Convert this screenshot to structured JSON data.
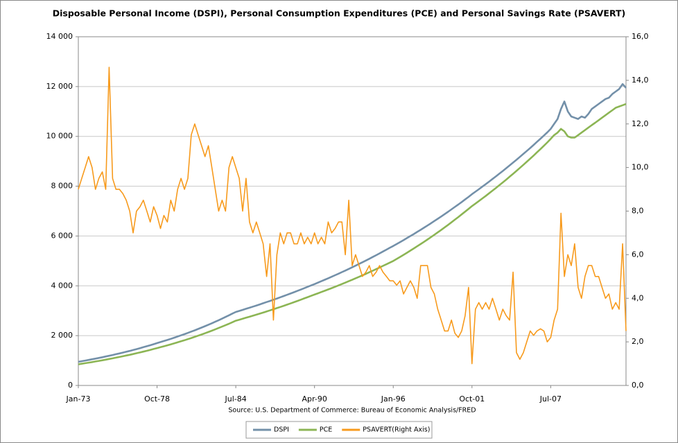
{
  "chart_data": {
    "type": "line",
    "title": "Disposable Personal Income (DSPI), Personal Consumption Expenditures (PCE) and Personal Savings Rate (PSAVERT)",
    "source": "Source: U.S. Department of Commerce: Bureau of Economic Analysis/FRED",
    "categories": [
      "Jan-73",
      null,
      null,
      null,
      null,
      null,
      null,
      null,
      null,
      null,
      null,
      null,
      null,
      null,
      null,
      null,
      null,
      null,
      null,
      null,
      null,
      null,
      null,
      "Oct-78",
      null,
      null,
      null,
      null,
      null,
      null,
      null,
      null,
      null,
      null,
      null,
      null,
      null,
      null,
      null,
      null,
      null,
      null,
      null,
      null,
      null,
      null,
      "Jul-84",
      null,
      null,
      null,
      null,
      null,
      null,
      null,
      null,
      null,
      null,
      null,
      null,
      null,
      null,
      null,
      null,
      null,
      null,
      null,
      null,
      null,
      null,
      "Apr-90",
      null,
      null,
      null,
      null,
      null,
      null,
      null,
      null,
      null,
      null,
      null,
      null,
      null,
      null,
      null,
      null,
      null,
      null,
      null,
      null,
      null,
      null,
      "Jan-96",
      null,
      null,
      null,
      null,
      null,
      null,
      null,
      null,
      null,
      null,
      null,
      null,
      null,
      null,
      null,
      null,
      null,
      null,
      null,
      null,
      null,
      null,
      "Oct-01",
      null,
      null,
      null,
      null,
      null,
      null,
      null,
      null,
      null,
      null,
      null,
      null,
      null,
      null,
      null,
      null,
      null,
      null,
      null,
      null,
      null,
      null,
      "Jul-07",
      null,
      null,
      null,
      null,
      null,
      null,
      null,
      null,
      null,
      null,
      null,
      null,
      null,
      null,
      null,
      null,
      null,
      null,
      null,
      null,
      null,
      null
    ],
    "series": [
      {
        "name": "DSPI",
        "color": "#7390a9",
        "values": [
          950,
          974,
          999,
          1025,
          1051,
          1078,
          1105,
          1134,
          1163,
          1192,
          1223,
          1254,
          1286,
          1319,
          1353,
          1387,
          1423,
          1459,
          1497,
          1535,
          1574,
          1615,
          1656,
          1700,
          1741,
          1784,
          1827,
          1871,
          1917,
          1964,
          2011,
          2060,
          2110,
          2162,
          2214,
          2268,
          2323,
          2380,
          2438,
          2497,
          2558,
          2620,
          2684,
          2749,
          2816,
          2885,
          2950,
          2992,
          3034,
          3077,
          3120,
          3164,
          3209,
          3254,
          3300,
          3347,
          3394,
          3442,
          3490,
          3540,
          3590,
          3640,
          3692,
          3744,
          3797,
          3850,
          3905,
          3960,
          4015,
          4070,
          4127,
          4185,
          4244,
          4303,
          4363,
          4425,
          4487,
          4550,
          4613,
          4678,
          4744,
          4810,
          4878,
          4946,
          5015,
          5086,
          5157,
          5229,
          5303,
          5377,
          5452,
          5529,
          5600,
          5677,
          5756,
          5835,
          5916,
          5997,
          6080,
          6164,
          6249,
          6335,
          6422,
          6511,
          6601,
          6692,
          6784,
          6878,
          6973,
          7069,
          7166,
          7265,
          7366,
          7467,
          7570,
          7680,
          7778,
          7878,
          7979,
          8081,
          8184,
          8289,
          8395,
          8503,
          8612,
          8722,
          8834,
          8947,
          9061,
          9177,
          9295,
          9414,
          9534,
          9656,
          9780,
          9905,
          10032,
          10160,
          10300,
          10500,
          10700,
          11100,
          11400,
          11000,
          10800,
          10750,
          10700,
          10800,
          10750,
          10900,
          11100,
          11200,
          11300,
          11400,
          11500,
          11550,
          11700,
          11800,
          11900,
          12100,
          11950
        ]
      },
      {
        "name": "PCE",
        "color": "#8cb554",
        "values": [
          850,
          871,
          893,
          915,
          938,
          962,
          986,
          1010,
          1036,
          1062,
          1088,
          1115,
          1143,
          1172,
          1201,
          1231,
          1262,
          1293,
          1326,
          1359,
          1393,
          1428,
          1463,
          1500,
          1536,
          1573,
          1611,
          1650,
          1690,
          1731,
          1773,
          1816,
          1860,
          1905,
          1951,
          1998,
          2046,
          2096,
          2146,
          2198,
          2252,
          2306,
          2362,
          2419,
          2478,
          2538,
          2600,
          2639,
          2678,
          2718,
          2758,
          2799,
          2841,
          2883,
          2926,
          2970,
          3014,
          3059,
          3105,
          3151,
          3198,
          3246,
          3294,
          3343,
          3393,
          3444,
          3495,
          3547,
          3600,
          3650,
          3700,
          3751,
          3803,
          3855,
          3908,
          3962,
          4017,
          4072,
          4128,
          4185,
          4243,
          4302,
          4361,
          4421,
          4482,
          4544,
          4607,
          4670,
          4735,
          4800,
          4866,
          4933,
          5000,
          5080,
          5161,
          5244,
          5328,
          5413,
          5500,
          5588,
          5677,
          5768,
          5860,
          5954,
          6049,
          6146,
          6244,
          6344,
          6446,
          6549,
          6654,
          6760,
          6868,
          6978,
          7090,
          7200,
          7300,
          7401,
          7504,
          7608,
          7714,
          7821,
          7930,
          8040,
          8152,
          8265,
          8380,
          8497,
          8615,
          8734,
          8856,
          8979,
          9104,
          9230,
          9359,
          9489,
          9621,
          9755,
          9900,
          10050,
          10150,
          10300,
          10200,
          10000,
          9950,
          9950,
          10050,
          10150,
          10250,
          10350,
          10450,
          10550,
          10650,
          10750,
          10850,
          10950,
          11050,
          11150,
          11200,
          11250,
          11300
        ]
      },
      {
        "name": "PSAVERT(Right Axis)",
        "color": "#f79a1c",
        "axis": "y2",
        "values": [
          9.0,
          9.5,
          10.0,
          10.5,
          10.0,
          9.0,
          9.5,
          9.8,
          9.0,
          14.6,
          9.5,
          9.0,
          9.0,
          8.8,
          8.5,
          8.0,
          7.0,
          8.0,
          8.2,
          8.5,
          8.0,
          7.5,
          8.2,
          7.8,
          7.2,
          7.8,
          7.5,
          8.5,
          8.0,
          9.0,
          9.5,
          9.0,
          9.5,
          11.5,
          12.0,
          11.5,
          11.0,
          10.5,
          11.0,
          10.0,
          9.0,
          8.0,
          8.5,
          8.0,
          10.0,
          10.5,
          10.0,
          9.5,
          8.0,
          9.5,
          7.5,
          7.0,
          7.5,
          7.0,
          6.5,
          5.0,
          6.5,
          3.0,
          6.0,
          7.0,
          6.5,
          7.0,
          7.0,
          6.5,
          6.5,
          7.0,
          6.5,
          6.8,
          6.5,
          7.0,
          6.5,
          6.8,
          6.5,
          7.5,
          7.0,
          7.2,
          7.5,
          7.5,
          6.0,
          8.5,
          5.5,
          6.0,
          5.5,
          5.0,
          5.2,
          5.5,
          5.0,
          5.2,
          5.5,
          5.2,
          5.0,
          4.8,
          4.8,
          4.6,
          4.8,
          4.2,
          4.5,
          4.8,
          4.5,
          4.0,
          5.5,
          5.5,
          5.5,
          4.5,
          4.2,
          3.5,
          3.0,
          2.5,
          2.5,
          3.0,
          2.4,
          2.2,
          2.5,
          3.2,
          4.5,
          1.0,
          3.5,
          3.8,
          3.5,
          3.8,
          3.5,
          4.0,
          3.5,
          3.0,
          3.5,
          3.2,
          3.0,
          5.2,
          1.5,
          1.2,
          1.5,
          2.0,
          2.5,
          2.3,
          2.5,
          2.6,
          2.5,
          2.0,
          2.2,
          3.0,
          3.5,
          7.9,
          5.0,
          6.0,
          5.5,
          6.5,
          4.5,
          4.0,
          5.0,
          5.5,
          5.5,
          5.0,
          5.0,
          4.5,
          4.0,
          4.2,
          3.5,
          3.8,
          3.5,
          6.5,
          2.5
        ]
      }
    ],
    "ylim": [
      0,
      14000
    ],
    "yticks": [
      0,
      {
        "value": 2000,
        "label": "2 000"
      },
      {
        "value": 4000,
        "label": "4 000"
      },
      {
        "value": 6000,
        "label": "6 000"
      },
      {
        "value": 8000,
        "label": "8 000"
      },
      {
        "value": 10000,
        "label": "10 000"
      },
      {
        "value": 12000,
        "label": "12 000"
      },
      {
        "value": 14000,
        "label": "14 000"
      }
    ],
    "y2lim": [
      0,
      16
    ],
    "y2ticks": [
      {
        "value": 0,
        "label": "0,0"
      },
      {
        "value": 2,
        "label": "2,0"
      },
      {
        "value": 4,
        "label": "4,0"
      },
      {
        "value": 6,
        "label": "6,0"
      },
      {
        "value": 8,
        "label": "8,0"
      },
      {
        "value": 10,
        "label": "10,0"
      },
      {
        "value": 12,
        "label": "12,0"
      },
      {
        "value": 14,
        "label": "14,0"
      },
      {
        "value": 16,
        "label": "16,0"
      }
    ],
    "grid": true,
    "legend": "bottom"
  }
}
